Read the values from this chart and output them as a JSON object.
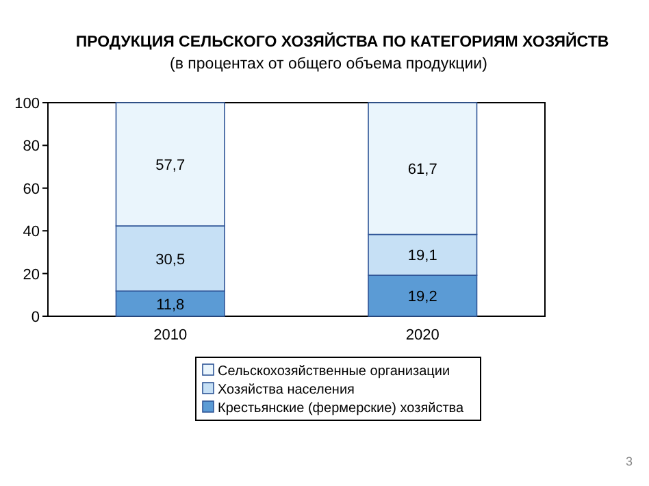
{
  "chart_data": {
    "type": "bar",
    "title": "ПРОДУКЦИЯ СЕЛЬСКОГО ХОЗЯЙСТВА ПО КАТЕГОРИЯМ ХОЗЯЙСТВ",
    "subtitle": "(в процентах от общего объема продукции)",
    "categories": [
      "2010",
      "2020"
    ],
    "stacked": true,
    "series": [
      {
        "name": "Крестьянские (фермерские) хозяйства",
        "color": "#5b9bd5",
        "values": [
          11.8,
          19.2
        ],
        "value_labels": [
          "11,8",
          "19,2"
        ]
      },
      {
        "name": "Хозяйства населения",
        "color": "#c6e0f5",
        "values": [
          30.5,
          19.1
        ],
        "value_labels": [
          "30,5",
          "19,1"
        ]
      },
      {
        "name": "Сельскохозяйственные организации",
        "color": "#eaf5fc",
        "values": [
          57.7,
          61.7
        ],
        "value_labels": [
          "57,7",
          "61,7"
        ]
      }
    ],
    "ylim": [
      0,
      100
    ],
    "yticks": [
      0,
      20,
      40,
      60,
      80,
      100
    ],
    "legend": "bottom",
    "annotations": [
      "3"
    ]
  }
}
